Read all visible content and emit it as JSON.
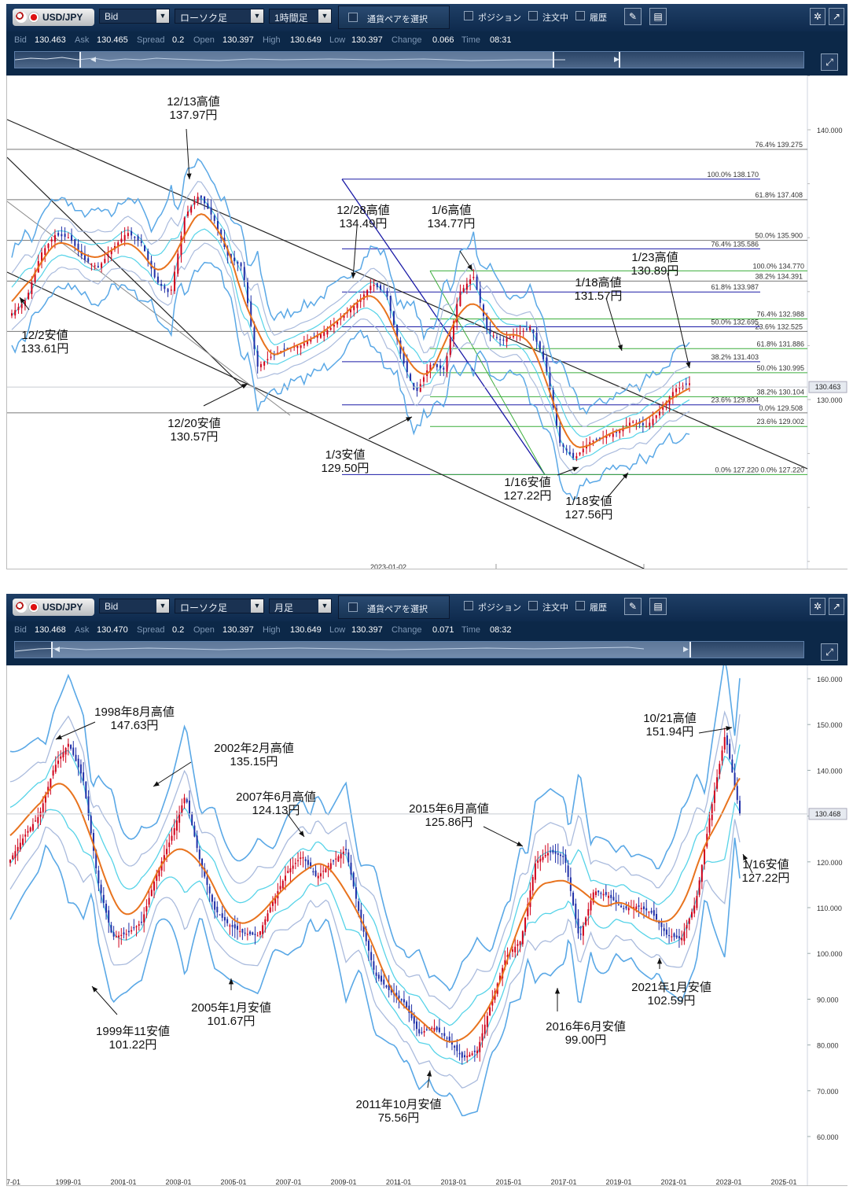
{
  "colors": {
    "bull": "#d0021b",
    "bear": "#1f2fa8",
    "ma": "#e8731e",
    "band1": "#5aa8e6",
    "band2": "#aabbdd",
    "band3": "#56d3e8",
    "guide": "#222222",
    "fib_blue": "#1a1aa6",
    "fib_green": "#3cae3c"
  },
  "top": {
    "toolbar": {
      "pair": "USD/JPY",
      "price_type": "Bid",
      "chart_type": "ローソク足",
      "timeframe": "1時間足",
      "select_pair": "通貨ペアを選択",
      "position": "ポジション",
      "orders": "注文中",
      "history": "履歴"
    },
    "info": {
      "bid_label": "Bid",
      "bid": "130.463",
      "ask_label": "Ask",
      "ask": "130.465",
      "spread_label": "Spread",
      "spread": "0.2",
      "open_label": "Open",
      "open": "130.397",
      "high_label": "High",
      "high": "130.649",
      "low_label": "Low",
      "low": "130.397",
      "change_label": "Change",
      "change": "0.066",
      "time_label": "Time",
      "time": "08:31"
    },
    "chart_data": {
      "type": "line",
      "title": "",
      "xlabel": "",
      "ylabel": "",
      "x_tick_labels": [
        "2023-01-02"
      ],
      "y_tick_labels": [
        "140.000",
        "130.000"
      ],
      "current_price": "130.463",
      "annotations": [
        {
          "label": [
            "12/13高値",
            "137.97円"
          ]
        },
        {
          "label": [
            "12/2安値",
            "133.61円"
          ]
        },
        {
          "label": [
            "12/28高値",
            "134.49円"
          ]
        },
        {
          "label": [
            "1/6高値",
            "134.77円"
          ]
        },
        {
          "label": [
            "1/23高値",
            "130.89円"
          ]
        },
        {
          "label": [
            "1/18高値",
            "131.57円"
          ]
        },
        {
          "label": [
            "12/20安値",
            "130.57円"
          ]
        },
        {
          "label": [
            "1/3安値",
            "129.50円"
          ]
        },
        {
          "label": [
            "1/16安値",
            "127.22円"
          ]
        },
        {
          "label": [
            "1/18安値",
            "127.56円"
          ]
        }
      ],
      "fibonacci_blue": [
        {
          "pct": "100.0%",
          "value": "138.170"
        },
        {
          "pct": "76.4%",
          "value": "135.586"
        },
        {
          "pct": "61.8%",
          "value": "133.987"
        },
        {
          "pct": "50.0%",
          "value": "132.695"
        },
        {
          "pct": "38.2%",
          "value": "131.403"
        },
        {
          "pct": "23.6%",
          "value": "129.804"
        },
        {
          "pct": "0.0%",
          "value": "127.220"
        }
      ],
      "fibonacci_grey": [
        {
          "pct": "76.4%",
          "value": "139.275"
        },
        {
          "pct": "61.8%",
          "value": "137.408"
        },
        {
          "pct": "50.0%",
          "value": "135.900"
        },
        {
          "pct": "38.2%",
          "value": "134.391"
        },
        {
          "pct": "23.6%",
          "value": "132.525"
        },
        {
          "pct": "0.0%",
          "value": "129.508"
        }
      ],
      "fibonacci_green": [
        {
          "pct": "100.0%",
          "value": "134.770"
        },
        {
          "pct": "76.4%",
          "value": "132.988"
        },
        {
          "pct": "61.8%",
          "value": "131.886"
        },
        {
          "pct": "50.0%",
          "value": "130.995"
        },
        {
          "pct": "38.2%",
          "value": "130.104"
        },
        {
          "pct": "23.6%",
          "value": "129.002"
        },
        {
          "pct": "0.0%",
          "value": "127.220"
        }
      ],
      "series": [
        {
          "values": [
            133.2,
            133.7,
            135.4,
            136.1,
            136.0,
            135.2,
            134.9,
            135.6,
            136.2,
            135.8,
            134.4,
            133.9,
            136.8,
            137.6,
            136.7,
            135.3,
            134.9,
            131.2,
            131.6,
            131.9,
            132.0,
            132.3,
            132.6,
            133.1,
            133.6,
            134.3,
            133.9,
            131.6,
            130.2,
            131.3,
            131.1,
            133.9,
            134.6,
            132.5,
            132.2,
            132.4,
            132.7,
            131.3,
            128.4,
            127.8,
            128.4,
            128.6,
            128.8,
            129.2,
            129.0,
            129.6,
            130.4,
            130.6
          ]
        }
      ]
    }
  },
  "bottom": {
    "toolbar": {
      "pair": "USD/JPY",
      "price_type": "Bid",
      "chart_type": "ローソク足",
      "timeframe": "月足",
      "select_pair": "通貨ペアを選択",
      "position": "ポジション",
      "orders": "注文中",
      "history": "履歴"
    },
    "info": {
      "bid_label": "Bid",
      "bid": "130.468",
      "ask_label": "Ask",
      "ask": "130.470",
      "spread_label": "Spread",
      "spread": "0.2",
      "open_label": "Open",
      "open": "130.397",
      "high_label": "High",
      "high": "130.649",
      "low_label": "Low",
      "low": "130.397",
      "change_label": "Change",
      "change": "0.071",
      "time_label": "Time",
      "time": "08:32"
    },
    "chart_data": {
      "type": "line",
      "title": "",
      "xlabel": "",
      "ylabel": "",
      "x_tick_labels": [
        "7-01",
        "1999-01",
        "2001-01",
        "2003-01",
        "2005-01",
        "2007-01",
        "2009-01",
        "2011-01",
        "2013-01",
        "2015-01",
        "2017-01",
        "2019-01",
        "2021-01",
        "2023-01",
        "2025-01"
      ],
      "y_tick_labels": [
        "160.000",
        "150.000",
        "140.000",
        "130.000",
        "120.000",
        "110.000",
        "100.000",
        "90.000",
        "80.000",
        "70.000",
        "60.000"
      ],
      "current_price": "130.468",
      "annotations": [
        {
          "label": [
            "1998年8月高値",
            "147.63円"
          ]
        },
        {
          "label": [
            "2002年2月高値",
            "135.15円"
          ]
        },
        {
          "label": [
            "2007年6月高値",
            "124.13円"
          ]
        },
        {
          "label": [
            "2015年6月高値",
            "125.86円"
          ]
        },
        {
          "label": [
            "10/21高値",
            "151.94円"
          ]
        },
        {
          "label": [
            "1/16安値",
            "127.22円"
          ]
        },
        {
          "label": [
            "1999年11安値",
            "101.22円"
          ]
        },
        {
          "label": [
            "2005年1月安値",
            "101.67円"
          ]
        },
        {
          "label": [
            "2011年10月安値",
            "75.56円"
          ]
        },
        {
          "label": [
            "2016年6月安値",
            "99.00円"
          ]
        },
        {
          "label": [
            "2021年1月安値",
            "102.59円"
          ]
        }
      ],
      "series": [
        {
          "values": [
            120.5,
            125.8,
            130.2,
            140.6,
            145.9,
            138.1,
            116.0,
            103.6,
            104.3,
            106.8,
            117.1,
            125.0,
            134.6,
            120.2,
            109.6,
            106.2,
            104.4,
            103.9,
            111.4,
            117.9,
            121.3,
            116.6,
            119.8,
            122.7,
            107.4,
            95.4,
            91.8,
            89.3,
            82.5,
            83.9,
            81.3,
            77.1,
            78.7,
            89.6,
            99.4,
            102.8,
            119.9,
            122.3,
            120.9,
            103.1,
            113.7,
            112.6,
            109.7,
            110.3,
            108.8,
            104.0,
            103.2,
            111.4,
            131.0,
            147.9,
            130.5
          ]
        }
      ]
    }
  }
}
